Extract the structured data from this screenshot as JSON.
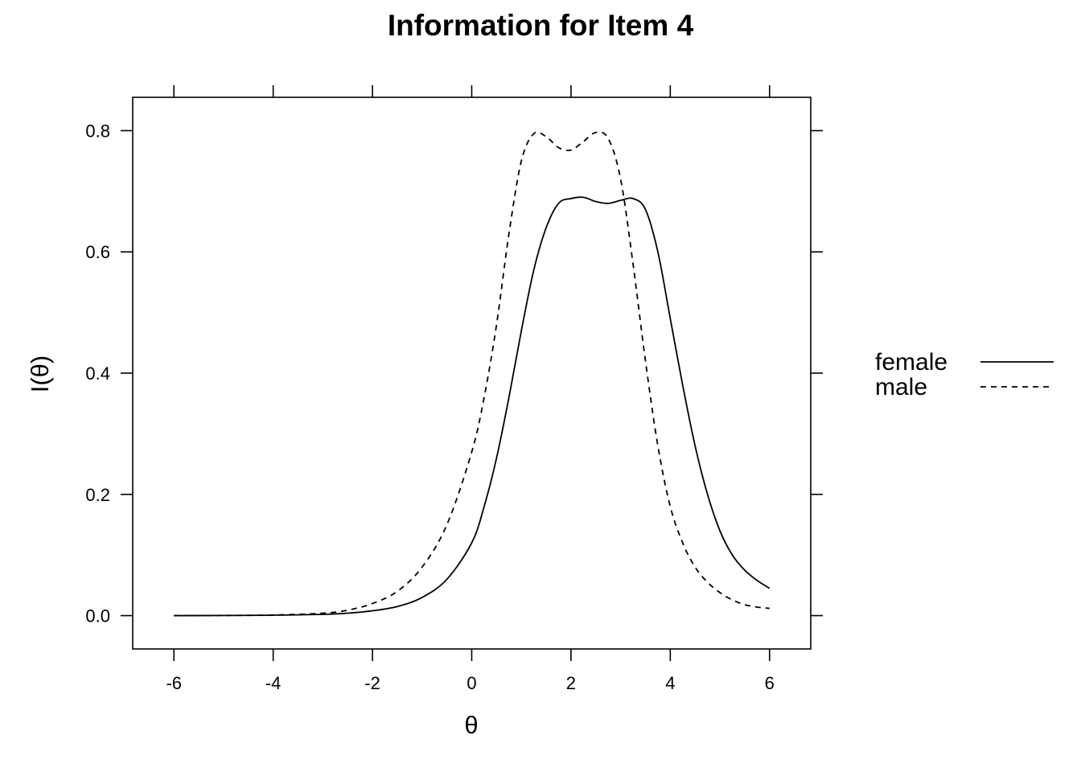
{
  "chart_data": {
    "type": "line",
    "title": "Information for Item 4",
    "xlabel": "θ",
    "ylabel": "I(θ)",
    "xlim": [
      -6.83,
      6.83
    ],
    "ylim": [
      -0.055,
      0.855
    ],
    "xticks": [
      -6,
      -4,
      -2,
      0,
      2,
      4,
      6
    ],
    "xtick_labels": [
      "-6",
      "-4",
      "-2",
      "0",
      "2",
      "4",
      "6"
    ],
    "yticks": [
      0.0,
      0.2,
      0.4,
      0.6,
      0.8
    ],
    "ytick_labels": [
      "0.0",
      "0.2",
      "0.4",
      "0.6",
      "0.8"
    ],
    "grid": false,
    "legend_position": "right",
    "series": [
      {
        "name": "female",
        "line_style": "solid",
        "color": "#000000",
        "x": [
          -6,
          -5,
          -4,
          -3,
          -2.5,
          -2,
          -1.5,
          -1,
          -0.5,
          0,
          0.25,
          0.5,
          0.75,
          1,
          1.25,
          1.5,
          1.75,
          2,
          2.25,
          2.5,
          2.75,
          3,
          3.25,
          3.5,
          3.75,
          4,
          4.25,
          4.5,
          4.75,
          5,
          5.25,
          5.5,
          5.75,
          6
        ],
        "y": [
          0.0,
          0.0002,
          0.0007,
          0.002,
          0.004,
          0.008,
          0.015,
          0.03,
          0.06,
          0.12,
          0.18,
          0.26,
          0.36,
          0.47,
          0.57,
          0.64,
          0.68,
          0.688,
          0.69,
          0.683,
          0.68,
          0.685,
          0.688,
          0.67,
          0.6,
          0.49,
          0.38,
          0.28,
          0.2,
          0.14,
          0.1,
          0.075,
          0.058,
          0.045
        ]
      },
      {
        "name": "male",
        "line_style": "dashed",
        "color": "#000000",
        "x": [
          -6,
          -5,
          -4,
          -3,
          -2.5,
          -2,
          -1.5,
          -1,
          -0.5,
          0,
          0.25,
          0.5,
          0.75,
          1,
          1.25,
          1.5,
          1.75,
          2,
          2.25,
          2.5,
          2.75,
          3,
          3.25,
          3.5,
          3.75,
          4,
          4.25,
          4.5,
          4.75,
          5,
          5.25,
          5.5,
          5.75,
          6
        ],
        "y": [
          0.0,
          0.0003,
          0.001,
          0.004,
          0.009,
          0.02,
          0.04,
          0.08,
          0.15,
          0.27,
          0.36,
          0.48,
          0.63,
          0.75,
          0.795,
          0.79,
          0.772,
          0.768,
          0.782,
          0.797,
          0.787,
          0.72,
          0.58,
          0.42,
          0.28,
          0.18,
          0.12,
          0.08,
          0.055,
          0.038,
          0.026,
          0.018,
          0.014,
          0.012
        ]
      }
    ]
  }
}
